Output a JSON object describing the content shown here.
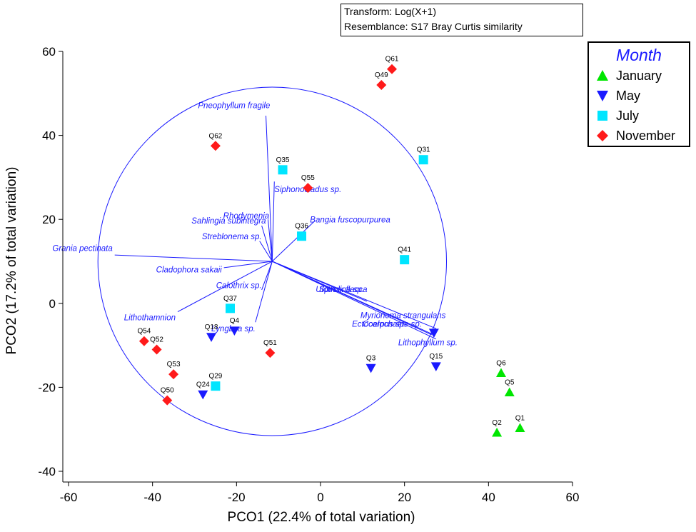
{
  "transform": {
    "line1": "Transform: Log(X+1)",
    "line2": "Resemblance: S17 Bray Curtis similarity"
  },
  "legend": {
    "title": "Month",
    "items": [
      {
        "label": "January",
        "color": "#00e600",
        "marker": "triangle-up"
      },
      {
        "label": "May",
        "color": "#1a1aff",
        "marker": "triangle-down"
      },
      {
        "label": "July",
        "color": "#00e5ff",
        "marker": "square"
      },
      {
        "label": "November",
        "color": "#ff1a1a",
        "marker": "diamond"
      }
    ]
  },
  "chart_data": {
    "type": "scatter",
    "title": "",
    "xlabel": "PCO1 (22.4% of total variation)",
    "ylabel": "PCO2 (17.2% of total variation)",
    "xlim": [
      -60,
      60
    ],
    "ylim": [
      -40,
      60
    ],
    "xticks": [
      -60,
      -40,
      -20,
      0,
      20,
      40,
      60
    ],
    "yticks": [
      -40,
      -20,
      0,
      20,
      40,
      60
    ],
    "circle": {
      "center": [
        -11.5,
        10
      ],
      "radius": 41.5
    },
    "vector_origin": [
      -11.5,
      10
    ],
    "series": [
      {
        "name": "January",
        "points": [
          {
            "label": "Q1",
            "x": 47.5,
            "y": -29.7
          },
          {
            "label": "Q2",
            "x": 42.0,
            "y": -30.8
          },
          {
            "label": "Q5",
            "x": 45.0,
            "y": -21.2
          },
          {
            "label": "Q6",
            "x": 43.0,
            "y": -16.6
          }
        ]
      },
      {
        "name": "May",
        "points": [
          {
            "label": "Q3",
            "x": 12.0,
            "y": -15.4
          },
          {
            "label": "Q15",
            "x": 27.5,
            "y": -15.0
          },
          {
            "label": "",
            "x": 27.0,
            "y": -7.0
          },
          {
            "label": "Q4",
            "x": -20.5,
            "y": -6.5
          },
          {
            "label": "Q18",
            "x": -26.0,
            "y": -8.0
          },
          {
            "label": "Q24",
            "x": -28.0,
            "y": -21.7
          }
        ]
      },
      {
        "name": "July",
        "points": [
          {
            "label": "Q31",
            "x": 24.5,
            "y": 34.2
          },
          {
            "label": "Q35",
            "x": -9.0,
            "y": 31.8
          },
          {
            "label": "Q36",
            "x": -4.5,
            "y": 16.0
          },
          {
            "label": "Q41",
            "x": 20.0,
            "y": 10.4
          },
          {
            "label": "Q37",
            "x": -21.5,
            "y": -1.2
          },
          {
            "label": "Q29",
            "x": -25.0,
            "y": -19.7
          }
        ]
      },
      {
        "name": "November",
        "points": [
          {
            "label": "Q61",
            "x": 17.0,
            "y": 55.8
          },
          {
            "label": "Q49",
            "x": 14.5,
            "y": 52.0
          },
          {
            "label": "Q62",
            "x": -25.0,
            "y": 37.5
          },
          {
            "label": "Q55",
            "x": -3.0,
            "y": 27.5
          },
          {
            "label": "Q51",
            "x": -12.0,
            "y": -11.8
          },
          {
            "label": "Q54",
            "x": -42.0,
            "y": -9.0
          },
          {
            "label": "Q52",
            "x": -39.0,
            "y": -11.0
          },
          {
            "label": "Q53",
            "x": -35.0,
            "y": -16.9
          },
          {
            "label": "Q50",
            "x": -36.5,
            "y": -23.1
          }
        ]
      }
    ],
    "vectors": [
      {
        "name": "Pneophyllum fragile",
        "x": -13.0,
        "y": 44.7,
        "anchor": "end",
        "lx": -12.0,
        "ly": 46.5
      },
      {
        "name": "Siphonocladus sp.",
        "x": -11.0,
        "y": 29.0,
        "anchor": "start",
        "lx": -11.0,
        "ly": 26.5
      },
      {
        "name": "Bangia fuscopurpurea",
        "x": -1.5,
        "y": 19.5,
        "anchor": "start",
        "lx": -2.5,
        "ly": 19.3
      },
      {
        "name": "Rhodymenia",
        "x": -12.5,
        "y": 20.0,
        "anchor": "end",
        "lx": -12.2,
        "ly": 20.2
      },
      {
        "name": "Sahlingia subintegra",
        "x": -14.0,
        "y": 18.5,
        "anchor": "end",
        "lx": -13.0,
        "ly": 19.0
      },
      {
        "name": "Streblonema sp.",
        "x": -14.5,
        "y": 14.8,
        "anchor": "end",
        "lx": -14.0,
        "ly": 15.3
      },
      {
        "name": "Grania pectinata",
        "x": -49.0,
        "y": 11.5,
        "anchor": "end",
        "lx": -49.5,
        "ly": 12.5
      },
      {
        "name": "Cladophora sakaii",
        "x": -23.0,
        "y": 8.5,
        "anchor": "end",
        "lx": -23.5,
        "ly": 7.4
      },
      {
        "name": "Calothrix sp.",
        "x": -14.0,
        "y": 3.2,
        "anchor": "end",
        "lx": -14.0,
        "ly": 3.6
      },
      {
        "name": "Spirulina sp.",
        "x": 11.0,
        "y": 0.5,
        "anchor": "middle",
        "lx": 5.0,
        "ly": 2.7
      },
      {
        "name": "Ulothrix flacca",
        "x": 11.5,
        "y": -0.5,
        "anchor": "middle",
        "lx": 5.0,
        "ly": 2.7
      },
      {
        "name": "Myrionema strangulans",
        "x": 27.5,
        "y": -6.0,
        "anchor": "start",
        "lx": 9.5,
        "ly": -3.5
      },
      {
        "name": "Ectocarpus sp.",
        "x": 26.5,
        "y": -7.5,
        "anchor": "start",
        "lx": 7.5,
        "ly": -5.6
      },
      {
        "name": "Coelochaete sp.",
        "x": 27.0,
        "y": -7.5,
        "anchor": "start",
        "lx": 10.0,
        "ly": -5.6
      },
      {
        "name": "Lithophyllum sp.",
        "x": 27.5,
        "y": -8.5,
        "anchor": "start",
        "lx": 18.5,
        "ly": -10.0
      },
      {
        "name": "Lithothamnion",
        "x": -34.0,
        "y": -2.0,
        "anchor": "end",
        "lx": -34.5,
        "ly": -4.0
      },
      {
        "name": "Lyngbya sp.",
        "x": -15.5,
        "y": -4.5,
        "anchor": "end",
        "lx": -15.5,
        "ly": -6.7
      }
    ]
  }
}
